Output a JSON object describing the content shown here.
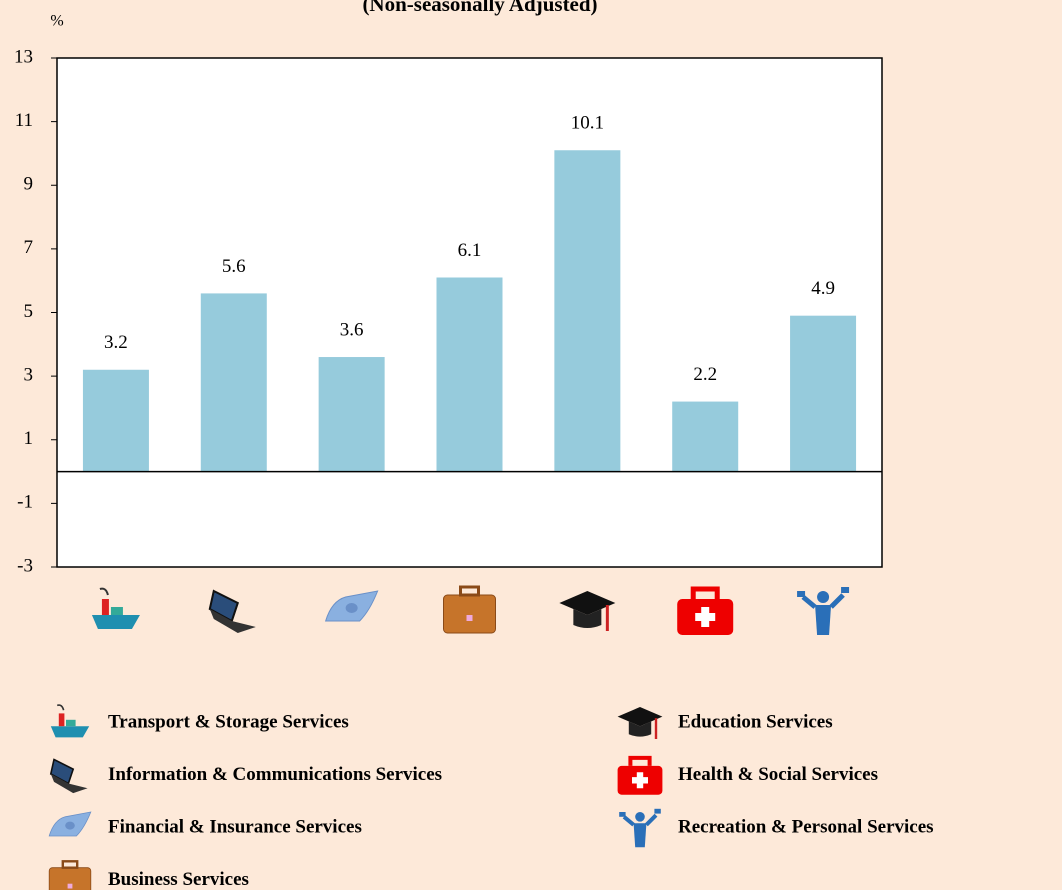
{
  "chart_data": {
    "type": "bar",
    "subtitle": "(Non-seasonally Adjusted)",
    "y_label": "%",
    "categories": [
      "Transport & Storage Services",
      "Information & Communications Services",
      "Financial & Insurance Services",
      "Business Services",
      "Education Services",
      "Health & Social Services",
      "Recreation & Personal Services"
    ],
    "values": [
      3.2,
      5.6,
      3.6,
      6.1,
      10.1,
      2.2,
      4.9
    ],
    "color": "#96cbdc",
    "ylim": [
      -3,
      13
    ],
    "yticks": [
      -3,
      -1,
      1,
      3,
      5,
      7,
      9,
      11,
      13
    ],
    "grid": false
  }
}
